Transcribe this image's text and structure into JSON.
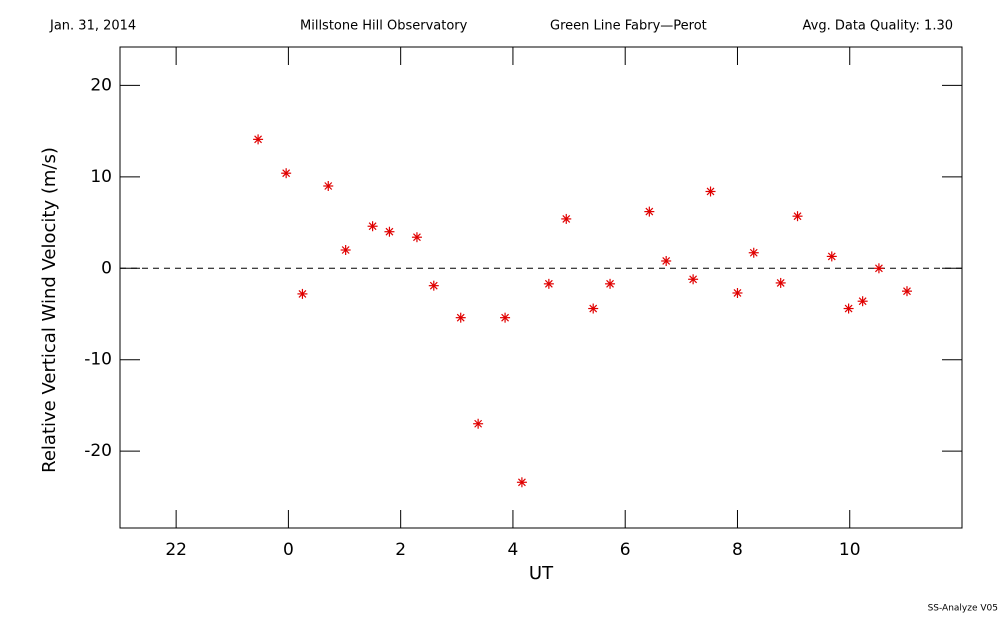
{
  "chart_data": {
    "type": "scatter",
    "annotations": [
      "Jan. 31, 2014",
      "Millstone Hill Observatory",
      "Green Line Fabry—Perot",
      "Avg. Data Quality: 1.30"
    ],
    "footer": "SS-Analyze V05",
    "xlabel": "UT",
    "ylabel": "Relative Vertical Wind Velocity (m/s)",
    "color": "#e00000",
    "x": [
      -0.54,
      -0.04,
      0.25,
      0.71,
      1.02,
      1.5,
      1.8,
      2.29,
      2.59,
      3.07,
      3.38,
      3.86,
      4.16,
      4.64,
      4.95,
      5.43,
      5.73,
      6.43,
      6.73,
      7.21,
      7.52,
      8.0,
      8.29,
      8.77,
      9.07,
      9.68,
      9.98,
      10.23,
      10.52,
      11.02
    ],
    "values": [
      14.1,
      10.4,
      -2.8,
      9.0,
      2.0,
      4.6,
      4.0,
      3.4,
      -1.9,
      -5.4,
      -17.0,
      -5.4,
      -23.4,
      -1.7,
      5.4,
      -4.4,
      -1.7,
      6.2,
      0.8,
      -1.2,
      8.4,
      -2.7,
      1.7,
      -1.6,
      5.7,
      1.3,
      -4.4,
      -3.6,
      0.0,
      -2.5
    ],
    "xlim": [
      -3,
      12
    ],
    "ylim": [
      -28.4,
      24.2
    ],
    "xticks": [
      {
        "value": -2,
        "label": "22"
      },
      0,
      2,
      4,
      6,
      8,
      10
    ],
    "yticks": [
      -20,
      -10,
      0,
      10,
      20
    ],
    "hline": 0
  }
}
